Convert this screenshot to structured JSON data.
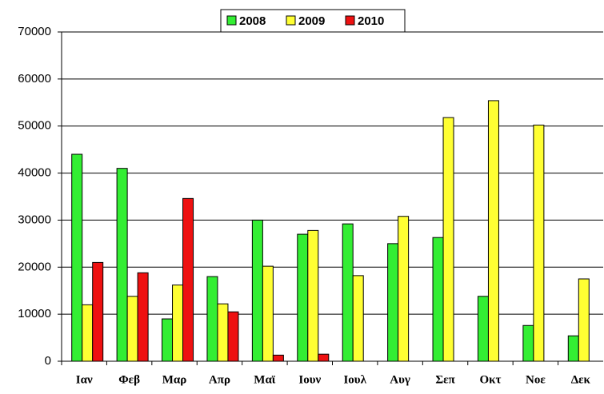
{
  "chart_data": {
    "type": "bar",
    "categories": [
      "Ιαν",
      "Φεβ",
      "Μαρ",
      "Απρ",
      "Μαϊ",
      "Ιουν",
      "Ιουλ",
      "Αυγ",
      "Σεπ",
      "Οκτ",
      "Νοε",
      "Δεκ"
    ],
    "series": [
      {
        "name": "2008",
        "color": "#33ee33",
        "values": [
          44000,
          41000,
          9000,
          18000,
          30000,
          27000,
          29200,
          25000,
          26300,
          13800,
          7600,
          5400
        ]
      },
      {
        "name": "2009",
        "color": "#ffff33",
        "values": [
          12000,
          13800,
          16200,
          12200,
          20200,
          27800,
          18200,
          30800,
          51800,
          55400,
          50200,
          17500
        ]
      },
      {
        "name": "2010",
        "color": "#ee1111",
        "values": [
          21000,
          18800,
          34600,
          10500,
          1300,
          1500,
          null,
          null,
          null,
          null,
          null,
          null
        ]
      }
    ],
    "ylim": [
      0,
      70000
    ],
    "yticks": [
      0,
      10000,
      20000,
      30000,
      40000,
      50000,
      60000,
      70000
    ],
    "grid": true,
    "legend": "top"
  }
}
